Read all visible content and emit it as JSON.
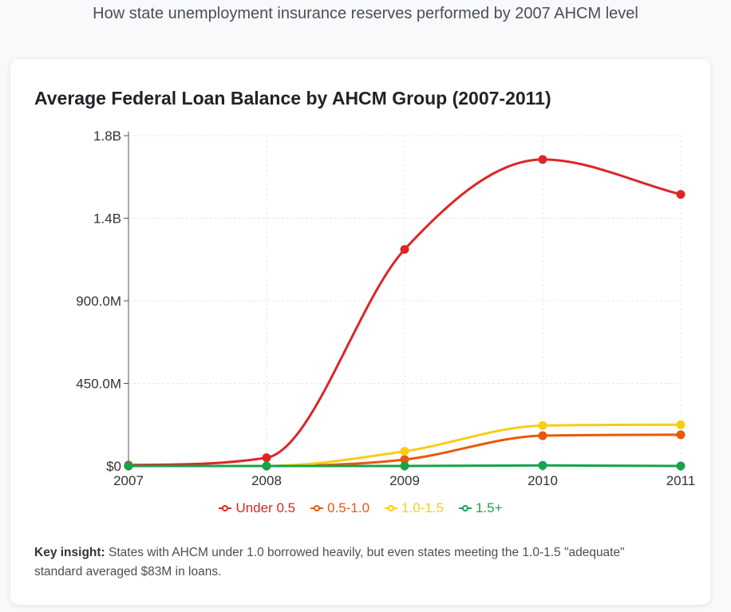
{
  "header": {
    "subtitle": "How state unemployment insurance reserves performed by 2007 AHCM level"
  },
  "insight": {
    "label": "Key insight:",
    "text": "States with AHCM under 1.0 borrowed heavily, but even states meeting the 1.0-1.5 \"adequate\" standard averaged $83M in loans."
  },
  "chart_data": {
    "type": "line",
    "title": "Average Federal Loan Balance by AHCM Group (2007-2011)",
    "xlabel": "",
    "ylabel": "",
    "categories": [
      "2007",
      "2008",
      "2009",
      "2010",
      "2011"
    ],
    "ylim": [
      0,
      1800000000
    ],
    "yticks": [
      0,
      450000000,
      900000000,
      1350000000,
      1800000000
    ],
    "ytick_labels": [
      "$0",
      "450.0M",
      "900.0M",
      "1.4B",
      "1.8B"
    ],
    "grid": true,
    "legend_position": "bottom",
    "series": [
      {
        "name": "Under 0.5",
        "color": "#dc2626",
        "values": [
          5000000,
          45000000,
          1180000000,
          1670000000,
          1480000000
        ]
      },
      {
        "name": "0.5-1.0",
        "color": "#ea580c",
        "values": [
          0,
          0,
          35000000,
          165000000,
          170000000
        ]
      },
      {
        "name": "1.0-1.5",
        "color": "#facc15",
        "values": [
          0,
          0,
          80000000,
          220000000,
          225000000
        ]
      },
      {
        "name": "1.5+",
        "color": "#16a34a",
        "values": [
          0,
          0,
          0,
          3000000,
          0
        ]
      }
    ]
  }
}
